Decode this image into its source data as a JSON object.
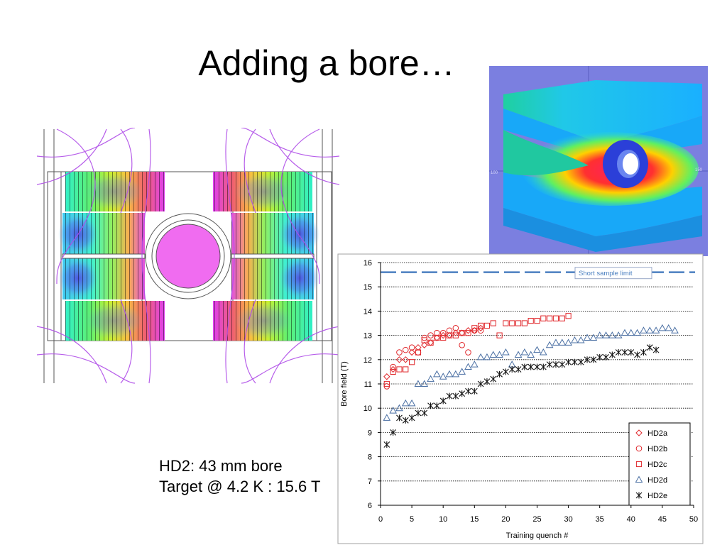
{
  "slide": {
    "title": "Adding a bore…",
    "caption_line1": "HD2: 43 mm bore",
    "caption_line2": "Target @ 4.2 K : 15.6 T"
  },
  "render3d": {
    "axis_tick_left": "100",
    "axis_tick_right": "150",
    "background": "#7b7fe0"
  },
  "colors": {
    "hd2_red": "#e0272b",
    "hd2d_blue": "#4a6fa3",
    "hd2e_black": "#111111",
    "short_sample_line": "#4a7fc0",
    "field_line": "#b04ee8",
    "bore": "#f06cf0"
  },
  "chart_data": {
    "type": "scatter",
    "title": "",
    "xlabel": "Training quench #",
    "ylabel": "Bore field (T)",
    "xlim": [
      0,
      50
    ],
    "ylim": [
      6,
      16
    ],
    "xticks": [
      "0",
      "5",
      "10",
      "15",
      "20",
      "25",
      "30",
      "35",
      "40",
      "45",
      "50"
    ],
    "yticks": [
      "6",
      "7",
      "8",
      "9",
      "10",
      "11",
      "12",
      "13",
      "14",
      "15",
      "16"
    ],
    "grid": "horizontal dotted",
    "legend": "bottom-right",
    "reference_line": {
      "label": "Short sample limit",
      "y": 15.6
    },
    "series": [
      {
        "name": "HD2a",
        "marker": "diamond",
        "points": [
          [
            1,
            11.3
          ],
          [
            2,
            11.6
          ],
          [
            3,
            12.0
          ],
          [
            4,
            12.0
          ],
          [
            5,
            12.3
          ],
          [
            6,
            12.5
          ],
          [
            7,
            12.6
          ],
          [
            8,
            12.7
          ],
          [
            9,
            12.9
          ],
          [
            10,
            13.0
          ],
          [
            11,
            13.0
          ],
          [
            12,
            13.1
          ],
          [
            13,
            13.1
          ],
          [
            14,
            13.2
          ],
          [
            15,
            13.2
          ],
          [
            16,
            13.3
          ]
        ]
      },
      {
        "name": "HD2b",
        "marker": "circle",
        "points": [
          [
            1,
            10.9
          ],
          [
            2,
            11.7
          ],
          [
            3,
            12.3
          ],
          [
            4,
            12.4
          ],
          [
            5,
            12.5
          ],
          [
            6,
            12.3
          ],
          [
            7,
            12.9
          ],
          [
            8,
            13.0
          ],
          [
            9,
            13.1
          ],
          [
            10,
            13.1
          ],
          [
            11,
            13.2
          ],
          [
            12,
            13.3
          ],
          [
            13,
            12.6
          ],
          [
            14,
            12.3
          ],
          [
            15,
            13.2
          ],
          [
            16,
            13.2
          ]
        ]
      },
      {
        "name": "HD2c",
        "marker": "square",
        "points": [
          [
            1,
            11.0
          ],
          [
            2,
            11.5
          ],
          [
            3,
            11.6
          ],
          [
            4,
            11.6
          ],
          [
            5,
            11.9
          ],
          [
            6,
            12.3
          ],
          [
            7,
            12.8
          ],
          [
            8,
            12.7
          ],
          [
            9,
            12.9
          ],
          [
            10,
            12.9
          ],
          [
            11,
            13.0
          ],
          [
            12,
            13.0
          ],
          [
            13,
            13.1
          ],
          [
            14,
            13.1
          ],
          [
            15,
            13.3
          ],
          [
            16,
            13.4
          ],
          [
            17,
            13.4
          ],
          [
            18,
            13.5
          ],
          [
            19,
            13.0
          ],
          [
            20,
            13.5
          ],
          [
            21,
            13.5
          ],
          [
            22,
            13.5
          ],
          [
            23,
            13.5
          ],
          [
            24,
            13.6
          ],
          [
            25,
            13.6
          ],
          [
            26,
            13.7
          ],
          [
            27,
            13.7
          ],
          [
            28,
            13.7
          ],
          [
            29,
            13.7
          ],
          [
            30,
            13.8
          ]
        ]
      },
      {
        "name": "HD2d",
        "marker": "triangle",
        "points": [
          [
            1,
            9.6
          ],
          [
            2,
            9.9
          ],
          [
            3,
            10.0
          ],
          [
            4,
            10.2
          ],
          [
            5,
            10.2
          ],
          [
            6,
            11.0
          ],
          [
            7,
            11.0
          ],
          [
            8,
            11.2
          ],
          [
            9,
            11.4
          ],
          [
            10,
            11.3
          ],
          [
            11,
            11.4
          ],
          [
            12,
            11.4
          ],
          [
            13,
            11.5
          ],
          [
            14,
            11.7
          ],
          [
            15,
            11.8
          ],
          [
            16,
            12.1
          ],
          [
            17,
            12.1
          ],
          [
            18,
            12.2
          ],
          [
            19,
            12.2
          ],
          [
            20,
            12.3
          ],
          [
            21,
            11.8
          ],
          [
            22,
            12.2
          ],
          [
            23,
            12.3
          ],
          [
            24,
            12.2
          ],
          [
            25,
            12.4
          ],
          [
            26,
            12.3
          ],
          [
            27,
            12.6
          ],
          [
            28,
            12.7
          ],
          [
            29,
            12.7
          ],
          [
            30,
            12.7
          ],
          [
            31,
            12.8
          ],
          [
            32,
            12.8
          ],
          [
            33,
            12.9
          ],
          [
            34,
            12.9
          ],
          [
            35,
            13.0
          ],
          [
            36,
            13.0
          ],
          [
            37,
            13.0
          ],
          [
            38,
            13.0
          ],
          [
            39,
            13.1
          ],
          [
            40,
            13.1
          ],
          [
            41,
            13.1
          ],
          [
            42,
            13.2
          ],
          [
            43,
            13.2
          ],
          [
            44,
            13.2
          ],
          [
            45,
            13.3
          ],
          [
            46,
            13.3
          ],
          [
            47,
            13.2
          ]
        ]
      },
      {
        "name": "HD2e",
        "marker": "star",
        "points": [
          [
            1,
            8.5
          ],
          [
            2,
            9.0
          ],
          [
            3,
            9.6
          ],
          [
            4,
            9.5
          ],
          [
            5,
            9.6
          ],
          [
            6,
            9.8
          ],
          [
            7,
            9.8
          ],
          [
            8,
            10.1
          ],
          [
            9,
            10.1
          ],
          [
            10,
            10.3
          ],
          [
            11,
            10.5
          ],
          [
            12,
            10.5
          ],
          [
            13,
            10.6
          ],
          [
            14,
            10.7
          ],
          [
            15,
            10.7
          ],
          [
            16,
            11.0
          ],
          [
            17,
            11.1
          ],
          [
            18,
            11.2
          ],
          [
            19,
            11.4
          ],
          [
            20,
            11.5
          ],
          [
            21,
            11.6
          ],
          [
            22,
            11.6
          ],
          [
            23,
            11.7
          ],
          [
            24,
            11.7
          ],
          [
            25,
            11.7
          ],
          [
            26,
            11.7
          ],
          [
            27,
            11.8
          ],
          [
            28,
            11.8
          ],
          [
            29,
            11.8
          ],
          [
            30,
            11.9
          ],
          [
            31,
            11.9
          ],
          [
            32,
            11.9
          ],
          [
            33,
            12.0
          ],
          [
            34,
            12.0
          ],
          [
            35,
            12.1
          ],
          [
            36,
            12.1
          ],
          [
            37,
            12.2
          ],
          [
            38,
            12.3
          ],
          [
            39,
            12.3
          ],
          [
            40,
            12.3
          ],
          [
            41,
            12.2
          ],
          [
            42,
            12.3
          ],
          [
            43,
            12.5
          ],
          [
            44,
            12.4
          ]
        ]
      }
    ]
  }
}
